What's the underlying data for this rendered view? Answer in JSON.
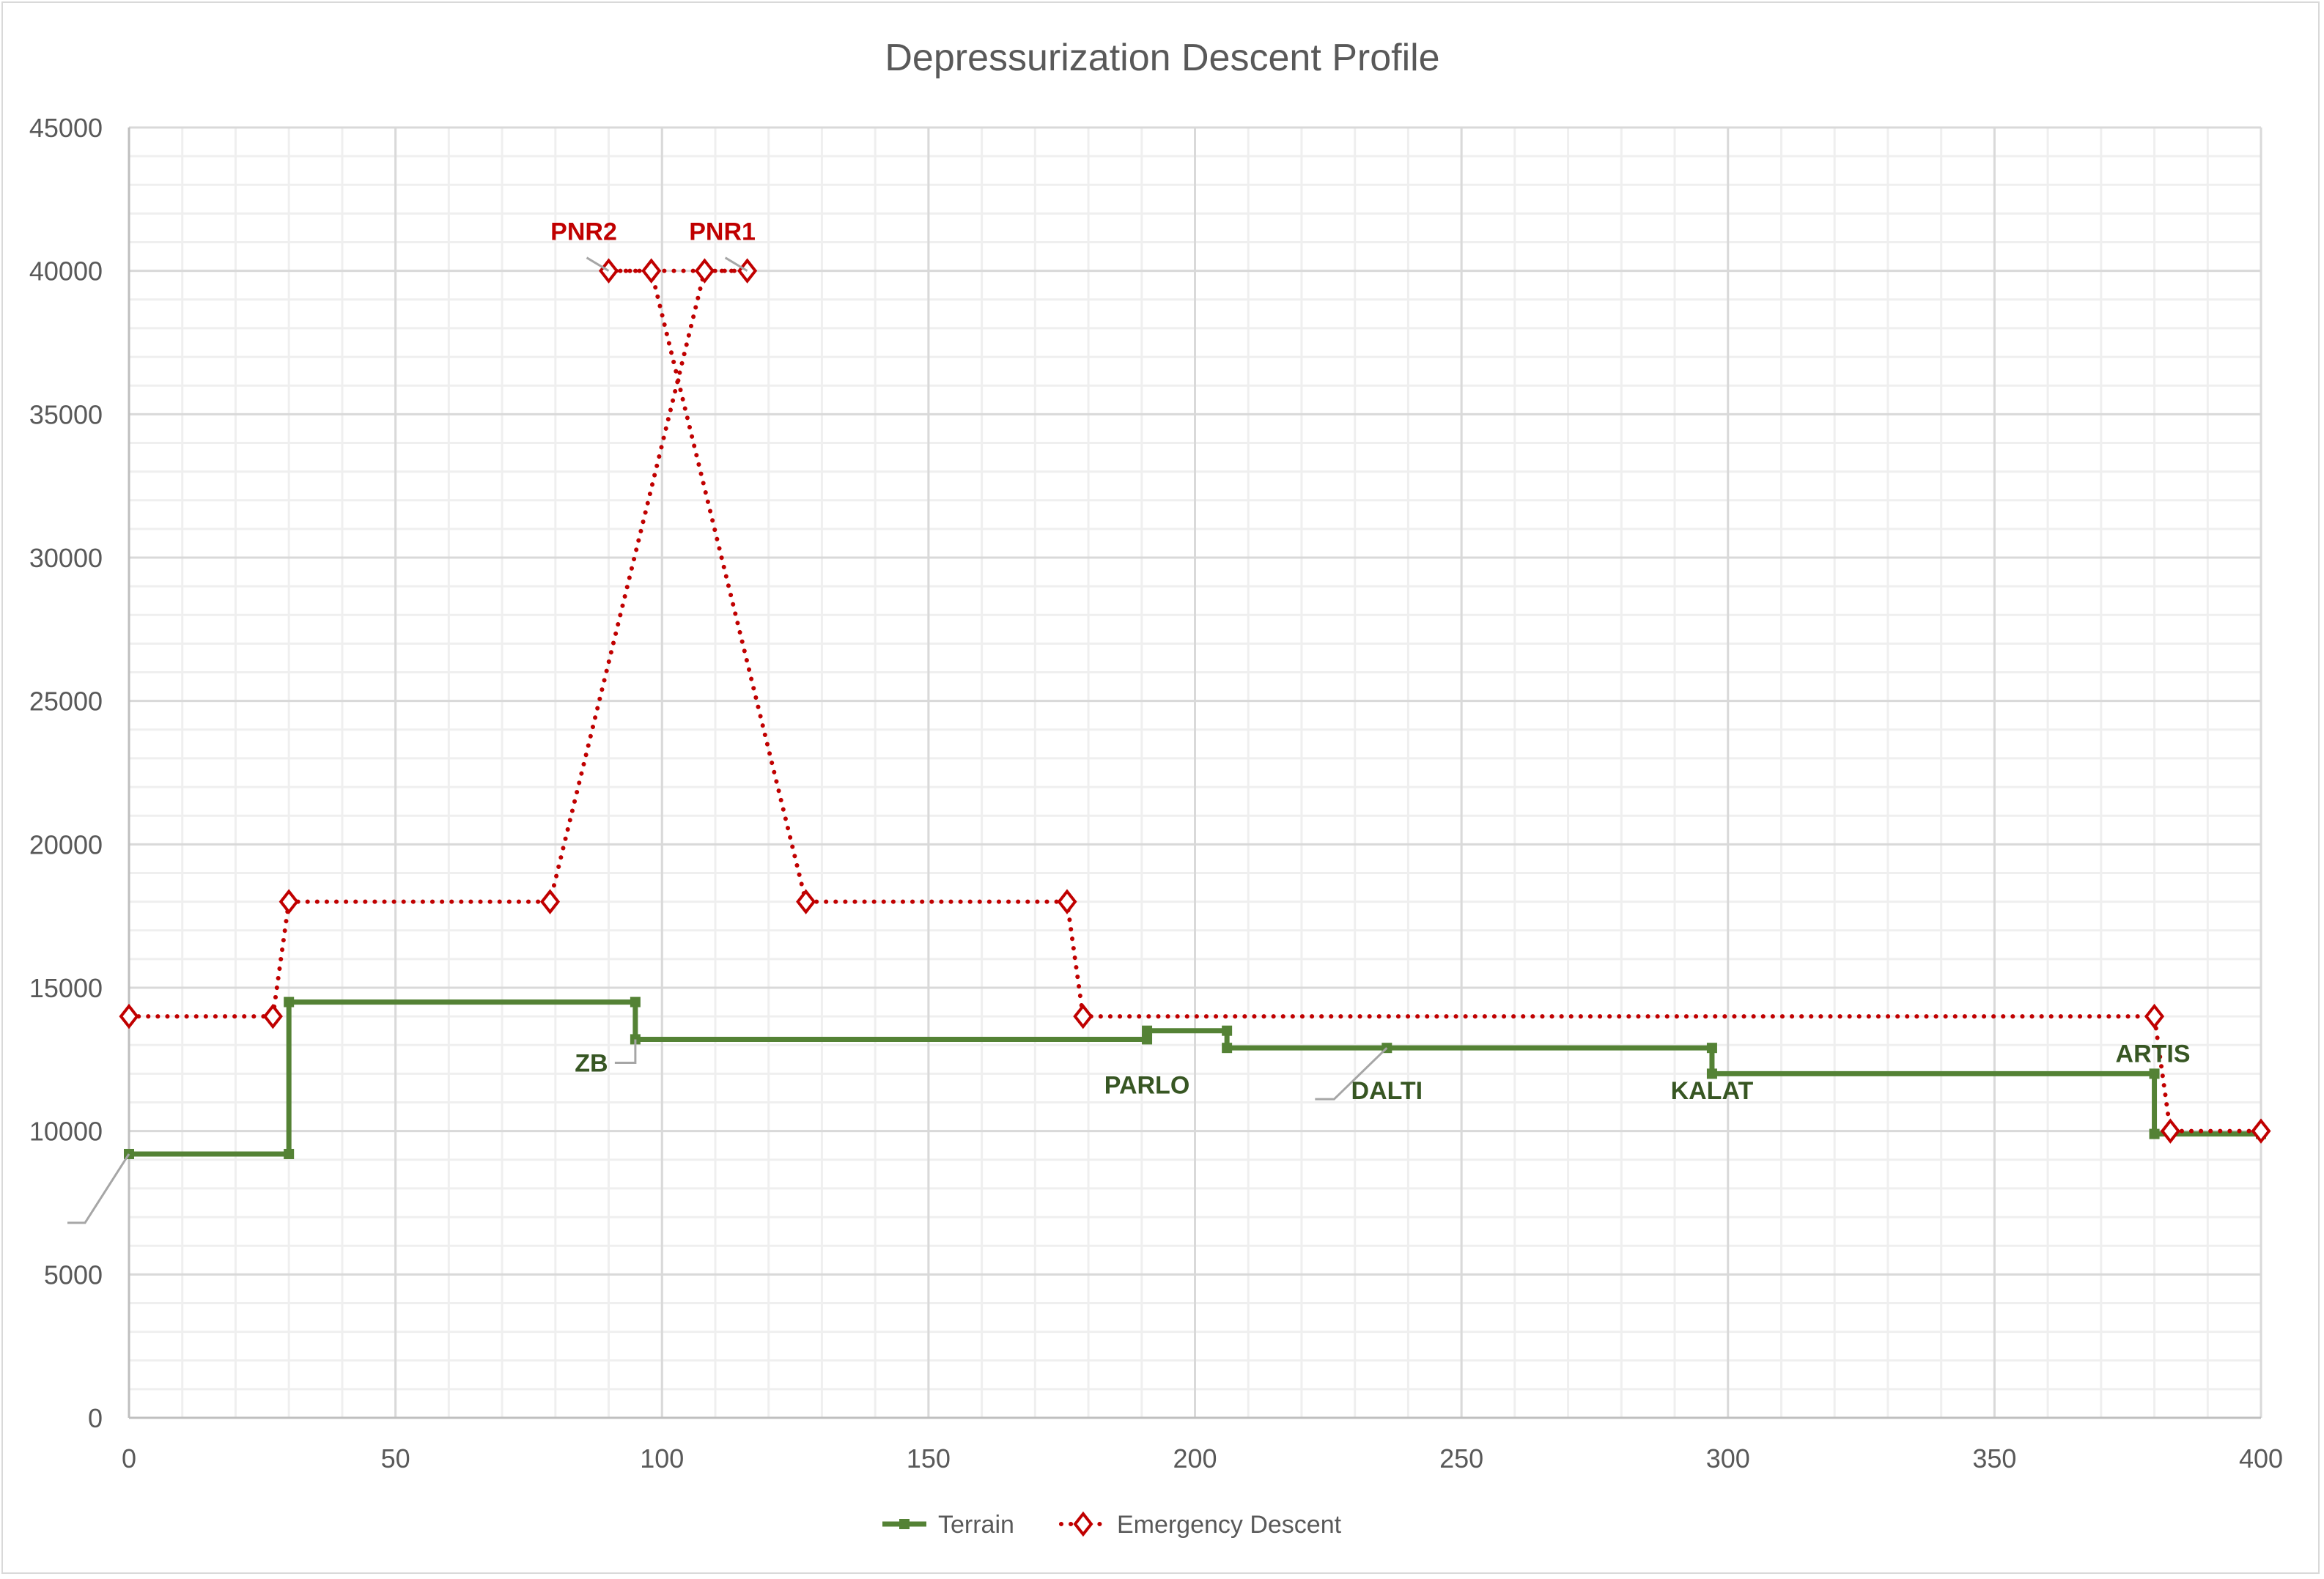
{
  "chart_data": {
    "type": "line",
    "title": "Depressurization Descent Profile",
    "xlabel": "",
    "ylabel": "",
    "xlim": [
      0,
      400
    ],
    "ylim": [
      0,
      45000
    ],
    "x_ticks": [
      0,
      50,
      100,
      150,
      200,
      250,
      300,
      350,
      400
    ],
    "y_ticks": [
      0,
      5000,
      10000,
      15000,
      20000,
      25000,
      30000,
      35000,
      40000,
      45000
    ],
    "grid": {
      "major": true,
      "minor": true
    },
    "legend_position": "bottom",
    "series": [
      {
        "name": "Terrain",
        "color": "#548235",
        "label_color": "#375623",
        "marker": "square",
        "line_style": "solid",
        "points": [
          [
            0,
            9200
          ],
          [
            30,
            9200
          ],
          [
            30,
            14500
          ],
          [
            95,
            14500
          ],
          [
            95,
            13200
          ],
          [
            191,
            13200
          ],
          [
            191,
            13500
          ],
          [
            206,
            13500
          ],
          [
            206,
            12900
          ],
          [
            236,
            12900
          ],
          [
            297,
            12900
          ],
          [
            297,
            12000
          ],
          [
            380,
            12000
          ],
          [
            380,
            9900
          ],
          [
            400,
            9900
          ]
        ],
        "point_labels": [
          {
            "point": 4,
            "text": "ZB"
          },
          {
            "point": 5,
            "text": "PARLO"
          },
          {
            "point": 9,
            "text": "DALTI"
          },
          {
            "point": 10,
            "text": "KALAT"
          },
          {
            "point": 12,
            "text": "ARTIS"
          }
        ]
      },
      {
        "name": "Emergency Descent",
        "color": "#C00000",
        "label_color": "#C00000",
        "marker": "diamond-open",
        "line_style": "dotted",
        "points": [
          [
            0,
            14000
          ],
          [
            27,
            14000
          ],
          [
            30,
            18000
          ],
          [
            79,
            18000
          ],
          [
            108,
            40000
          ],
          [
            116,
            40000
          ],
          [
            90,
            40000
          ],
          [
            98,
            40000
          ],
          [
            127,
            18000
          ],
          [
            176,
            18000
          ],
          [
            179,
            14000
          ],
          [
            380,
            14000
          ],
          [
            383,
            10000
          ],
          [
            400,
            10000
          ]
        ],
        "point_labels": [
          {
            "point": 5,
            "text": "PNR1"
          },
          {
            "point": 6,
            "text": "PNR2"
          }
        ]
      }
    ]
  }
}
